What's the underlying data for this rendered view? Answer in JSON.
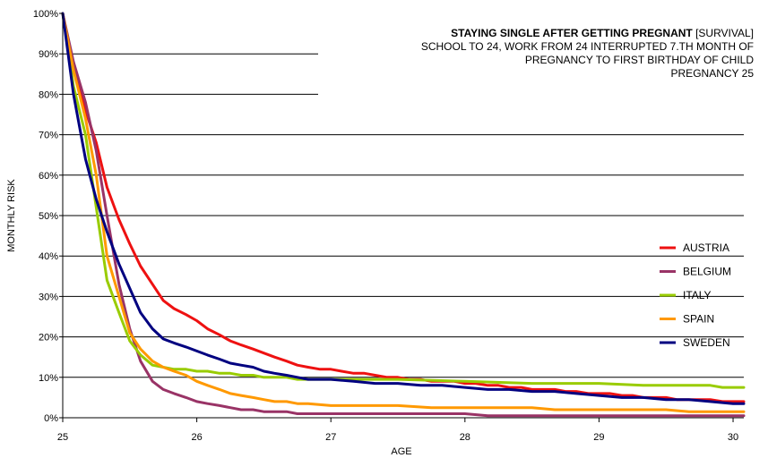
{
  "chart_data": {
    "type": "line",
    "title_bold": "STAYING SINGLE AFTER GETTING PREGNANT",
    "title_rest": " [SURVIVAL]",
    "subtitle_lines": [
      "SCHOOL TO 24, WORK FROM 24 INTERRUPTED 7.TH MONTH OF",
      "PREGNANCY TO FIRST BIRTHDAY OF CHILD",
      "PREGNANCY 25"
    ],
    "xlabel": "AGE",
    "ylabel": "MONTHLY RISK",
    "xlim": [
      25,
      30.08
    ],
    "ylim": [
      0,
      100
    ],
    "x_ticks": [
      "25",
      "26",
      "27",
      "28",
      "29",
      "30"
    ],
    "y_ticks": [
      "0%",
      "10%",
      "20%",
      "30%",
      "40%",
      "50%",
      "60%",
      "70%",
      "80%",
      "90%",
      "100%"
    ],
    "grid": "horizontal",
    "legend_position": "right",
    "series": [
      {
        "name": "AUSTRIA",
        "color": "#ee1111",
        "x": [
          25,
          25.08,
          25.17,
          25.25,
          25.33,
          25.42,
          25.5,
          25.58,
          25.67,
          25.75,
          25.83,
          25.92,
          26,
          26.08,
          26.17,
          26.25,
          26.33,
          26.42,
          26.5,
          26.58,
          26.67,
          26.75,
          26.83,
          26.92,
          27,
          27.08,
          27.17,
          27.25,
          27.33,
          27.42,
          27.5,
          27.58,
          27.67,
          27.75,
          27.83,
          27.92,
          28,
          28.08,
          28.17,
          28.25,
          28.33,
          28.42,
          28.5,
          28.58,
          28.67,
          28.75,
          28.83,
          28.92,
          29,
          29.08,
          29.17,
          29.25,
          29.33,
          29.42,
          29.5,
          29.58,
          29.67,
          29.75,
          29.83,
          29.92,
          30,
          30.08
        ],
        "y": [
          100,
          86,
          76,
          68,
          57,
          49,
          43,
          37.5,
          33,
          29,
          27,
          25.5,
          24,
          22,
          20.5,
          19,
          18,
          17,
          16,
          15,
          14,
          13,
          12.5,
          12,
          12,
          11.5,
          11,
          11,
          10.5,
          10,
          10,
          9.5,
          9.5,
          9,
          9,
          9,
          8.5,
          8.5,
          8,
          8,
          7.5,
          7.5,
          7,
          7,
          7,
          6.5,
          6.5,
          6,
          6,
          6,
          5.5,
          5.5,
          5,
          5,
          5,
          4.5,
          4.5,
          4.5,
          4.5,
          4,
          4,
          4
        ]
      },
      {
        "name": "BELGIUM",
        "color": "#993366",
        "x": [
          25,
          25.08,
          25.17,
          25.25,
          25.33,
          25.42,
          25.5,
          25.58,
          25.67,
          25.75,
          25.83,
          25.92,
          26,
          26.08,
          26.17,
          26.25,
          26.33,
          26.42,
          26.5,
          26.58,
          26.67,
          26.75,
          26.83,
          27,
          27.5,
          28,
          28.17,
          28.5,
          29,
          29.5,
          30,
          30.08
        ],
        "y": [
          100,
          88,
          78,
          66,
          50,
          33,
          22,
          14,
          9,
          7,
          6,
          5,
          4,
          3.5,
          3,
          2.5,
          2,
          2,
          1.5,
          1.5,
          1.5,
          1,
          1,
          1,
          1,
          1,
          0.5,
          0.5,
          0.5,
          0.5,
          0.5,
          0.5
        ]
      },
      {
        "name": "ITALY",
        "color": "#99cc00",
        "x": [
          25,
          25.08,
          25.17,
          25.25,
          25.33,
          25.42,
          25.5,
          25.58,
          25.67,
          25.75,
          25.83,
          25.92,
          26,
          26.08,
          26.17,
          26.25,
          26.33,
          26.42,
          26.5,
          26.58,
          26.67,
          26.75,
          27,
          27.5,
          28,
          28.5,
          29,
          29.33,
          29.5,
          29.83,
          29.92,
          30.08
        ],
        "y": [
          100,
          82,
          70,
          52,
          34,
          26,
          19,
          15.5,
          13,
          12.5,
          12,
          12,
          11.5,
          11.5,
          11,
          11,
          10.5,
          10.5,
          10,
          10,
          10,
          9.5,
          9.5,
          9.5,
          9,
          8.5,
          8.5,
          8,
          8,
          8,
          7.5,
          7.5
        ]
      },
      {
        "name": "SPAIN",
        "color": "#ff9900",
        "x": [
          25,
          25.08,
          25.17,
          25.25,
          25.33,
          25.42,
          25.5,
          25.58,
          25.67,
          25.75,
          25.83,
          25.92,
          26,
          26.08,
          26.17,
          26.25,
          26.33,
          26.42,
          26.5,
          26.58,
          26.67,
          26.75,
          26.83,
          27,
          27.5,
          27.75,
          28,
          28.5,
          28.67,
          29,
          29.5,
          29.67,
          30,
          30.08
        ],
        "y": [
          100,
          86,
          74,
          60,
          40,
          30,
          21,
          17,
          14,
          12.5,
          11.5,
          10.5,
          9,
          8,
          7,
          6,
          5.5,
          5,
          4.5,
          4,
          4,
          3.5,
          3.5,
          3,
          3,
          2.5,
          2.5,
          2.5,
          2,
          2,
          2,
          1.5,
          1.5,
          1.5
        ]
      },
      {
        "name": "SWEDEN",
        "color": "#000080",
        "x": [
          25,
          25.08,
          25.17,
          25.25,
          25.33,
          25.42,
          25.5,
          25.58,
          25.67,
          25.75,
          25.83,
          25.92,
          26,
          26.08,
          26.17,
          26.25,
          26.33,
          26.42,
          26.5,
          26.58,
          26.67,
          26.75,
          26.83,
          26.92,
          27,
          27.17,
          27.33,
          27.5,
          27.67,
          27.83,
          28,
          28.17,
          28.33,
          28.5,
          28.67,
          28.83,
          29,
          29.17,
          29.33,
          29.5,
          29.67,
          29.83,
          30,
          30.08
        ],
        "y": [
          100,
          80,
          64,
          54,
          46,
          38,
          32,
          26,
          22,
          19.5,
          18.5,
          17.5,
          16.5,
          15.5,
          14.5,
          13.5,
          13,
          12.5,
          11.5,
          11,
          10.5,
          10,
          9.5,
          9.5,
          9.5,
          9,
          8.5,
          8.5,
          8,
          8,
          7.5,
          7,
          7,
          6.5,
          6.5,
          6,
          5.5,
          5,
          5,
          4.5,
          4.5,
          4,
          3.5,
          3.5
        ]
      }
    ]
  }
}
